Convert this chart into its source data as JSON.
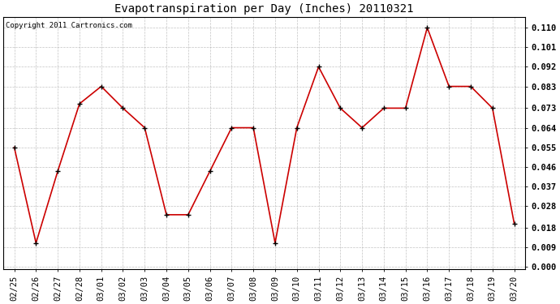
{
  "title": "Evapotranspiration per Day (Inches) 20110321",
  "copyright": "Copyright 2011 Cartronics.com",
  "x_labels": [
    "02/25",
    "02/26",
    "02/27",
    "02/28",
    "03/01",
    "03/02",
    "03/03",
    "03/04",
    "03/05",
    "03/06",
    "03/07",
    "03/08",
    "03/09",
    "03/10",
    "03/11",
    "03/12",
    "03/13",
    "03/14",
    "03/15",
    "03/16",
    "03/17",
    "03/18",
    "03/19",
    "03/20"
  ],
  "y_values": [
    0.055,
    0.011,
    0.044,
    0.075,
    0.083,
    0.073,
    0.064,
    0.024,
    0.024,
    0.044,
    0.064,
    0.064,
    0.011,
    0.064,
    0.092,
    0.073,
    0.064,
    0.073,
    0.073,
    0.11,
    0.083,
    0.083,
    0.073,
    0.02
  ],
  "line_color": "#cc0000",
  "marker": "+",
  "marker_size": 5,
  "marker_color": "#000000",
  "background_color": "#ffffff",
  "plot_bg_color": "#ffffff",
  "grid_color": "#aaaaaa",
  "y_min": 0.0,
  "y_max": 0.11,
  "y_ticks": [
    0.0,
    0.009,
    0.018,
    0.028,
    0.037,
    0.046,
    0.055,
    0.064,
    0.073,
    0.083,
    0.092,
    0.101,
    0.11
  ],
  "title_fontsize": 10,
  "copyright_fontsize": 6.5,
  "tick_fontsize": 7.5
}
